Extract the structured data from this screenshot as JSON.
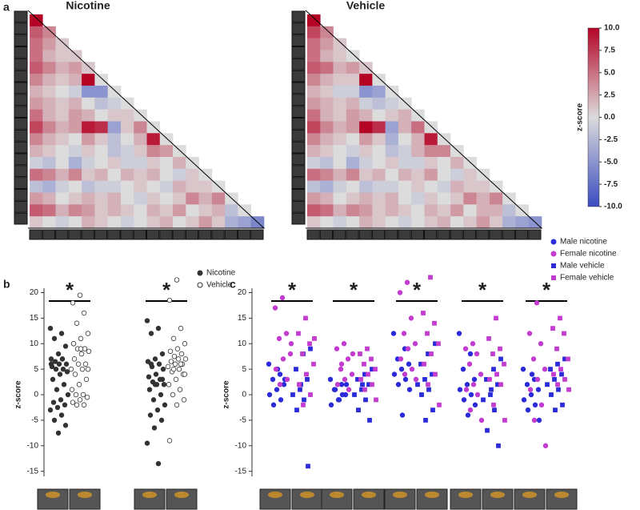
{
  "chart_data": [
    {
      "type": "heatmap",
      "panel": "a",
      "matrices": [
        {
          "title": "Nicotine",
          "values": [
            [
              10
            ],
            [
              6,
              4
            ],
            [
              5,
              3,
              1
            ],
            [
              5,
              2,
              1,
              1
            ],
            [
              6,
              4,
              2,
              3,
              1
            ],
            [
              4,
              2,
              1,
              2,
              10,
              0
            ],
            [
              2,
              1,
              0,
              -1,
              -5,
              -5,
              0
            ],
            [
              3,
              2,
              1,
              2,
              0,
              -2,
              -1,
              0
            ],
            [
              5,
              2,
              1,
              3,
              2,
              0,
              1,
              1,
              0
            ],
            [
              7,
              4,
              2,
              3,
              9,
              8,
              -4,
              1,
              4,
              0
            ],
            [
              4,
              2,
              1,
              0,
              3,
              1,
              -2,
              0,
              2,
              9,
              0
            ],
            [
              2,
              1,
              0,
              -1,
              1,
              0,
              -2,
              -1,
              1,
              4,
              3,
              0
            ],
            [
              -1,
              -2,
              0,
              -3,
              -1,
              0,
              1,
              -1,
              -1,
              1,
              0,
              2,
              0
            ],
            [
              5,
              4,
              2,
              4,
              1,
              2,
              0,
              2,
              1,
              2,
              0,
              -1,
              1,
              0
            ],
            [
              -2,
              -3,
              -1,
              0,
              -2,
              -1,
              -1,
              0,
              1,
              0,
              -1,
              2,
              1,
              1,
              0
            ],
            [
              3,
              2,
              0,
              1,
              2,
              1,
              2,
              0,
              -1,
              1,
              0,
              1,
              4,
              2,
              4,
              0
            ],
            [
              6,
              5,
              2,
              4,
              3,
              1,
              2,
              1,
              0,
              2,
              1,
              3,
              0,
              1,
              2,
              -2,
              0
            ],
            [
              1,
              0,
              -1,
              0,
              2,
              1,
              0,
              -1,
              0,
              1,
              2,
              0,
              1,
              3,
              1,
              -3,
              -4,
              -6
            ]
          ]
        },
        {
          "title": "Vehicle",
          "values": [
            [
              10
            ],
            [
              7,
              4
            ],
            [
              5,
              3,
              1
            ],
            [
              5,
              2,
              1,
              0
            ],
            [
              6,
              5,
              2,
              3,
              1
            ],
            [
              4,
              2,
              1,
              1,
              10,
              0
            ],
            [
              2,
              1,
              -1,
              -1,
              -5,
              -4,
              0
            ],
            [
              3,
              2,
              1,
              2,
              -1,
              -2,
              -1,
              0
            ],
            [
              5,
              2,
              1,
              3,
              2,
              0,
              1,
              2,
              0
            ],
            [
              7,
              4,
              2,
              3,
              10,
              8,
              -4,
              2,
              5,
              0
            ],
            [
              4,
              2,
              1,
              0,
              3,
              1,
              -3,
              0,
              2,
              9,
              0
            ],
            [
              2,
              1,
              0,
              -1,
              1,
              0,
              -2,
              -1,
              2,
              4,
              4,
              0
            ],
            [
              -1,
              -2,
              0,
              -3,
              -1,
              0,
              1,
              -1,
              -1,
              1,
              0,
              2,
              0
            ],
            [
              5,
              4,
              2,
              4,
              1,
              2,
              0,
              2,
              1,
              3,
              0,
              -1,
              1,
              0
            ],
            [
              -2,
              -3,
              -1,
              0,
              -2,
              -1,
              -1,
              0,
              1,
              0,
              -1,
              2,
              1,
              1,
              0
            ],
            [
              3,
              2,
              0,
              1,
              2,
              1,
              2,
              0,
              -1,
              1,
              0,
              1,
              4,
              2,
              4,
              0
            ],
            [
              6,
              5,
              2,
              4,
              3,
              1,
              2,
              1,
              0,
              2,
              1,
              3,
              0,
              2,
              2,
              -2,
              0
            ],
            [
              1,
              0,
              -1,
              0,
              2,
              1,
              0,
              -1,
              0,
              1,
              2,
              0,
              1,
              3,
              1,
              -3,
              -4,
              -5
            ]
          ]
        }
      ],
      "colorbar": {
        "label": "z-score",
        "lim": [
          -10,
          10
        ],
        "colors": [
          "#3a4cc0",
          "#dcdcdc",
          "#b40426"
        ],
        "ticks": [
          {
            "value": 10,
            "label": "10.0"
          },
          7.5,
          {
            "value": 5,
            "label": "5.0"
          },
          2.5,
          {
            "value": 0,
            "label": "0.0"
          },
          -2.5,
          {
            "value": -5,
            "label": "-5.0"
          },
          -7.5,
          {
            "value": -10,
            "label": "-10.0"
          }
        ]
      }
    },
    {
      "type": "strip",
      "panel": "b",
      "ylabel": "z-score",
      "ylim": [
        -16,
        24
      ],
      "yticks": [
        -15,
        -10,
        -5,
        0,
        5,
        10,
        15,
        20
      ],
      "annotations": [
        "*",
        "*"
      ],
      "series": [
        {
          "name": "Nicotine",
          "color": "#333333",
          "marker": "circle",
          "filled": true,
          "values": [
            [
              13,
              12,
              11,
              9.5,
              8,
              7,
              7,
              6.5,
              6,
              6,
              5.5,
              5,
              5,
              4.5,
              4,
              3,
              2,
              1,
              0,
              -1,
              -1.5,
              -2,
              -2.5,
              -3,
              -4,
              -5,
              -6,
              -7.5,
              6,
              7
            ],
            [
              14.5,
              13,
              12,
              8,
              7,
              6.5,
              6,
              5.5,
              5,
              4,
              3.5,
              3,
              2.5,
              2,
              2,
              1,
              0,
              -1,
              -2,
              -3,
              -4,
              -5,
              -6.5,
              -9.5,
              -13.5,
              6,
              3,
              2
            ]
          ]
        },
        {
          "name": "Vehicle",
          "color": "#333333",
          "marker": "circle",
          "filled": false,
          "values": [
            [
              19.5,
              18,
              16,
              14,
              12,
              11,
              10,
              9,
              9,
              8.5,
              8,
              7,
              6,
              6,
              5,
              5,
              4,
              3,
              2,
              1,
              0,
              0,
              -0.5,
              -1,
              -1.5,
              -2,
              -2,
              5,
              9,
              10
            ],
            [
              22.5,
              18.5,
              13,
              11,
              10,
              9,
              8.5,
              8,
              7.5,
              7,
              7,
              6.5,
              6,
              6,
              5.5,
              5,
              4.5,
              4,
              3,
              2,
              1,
              0,
              -1,
              -2,
              -9,
              6,
              5,
              4
            ]
          ]
        }
      ]
    },
    {
      "type": "strip",
      "panel": "c",
      "ylabel": "z-score",
      "ylim": [
        -16,
        24
      ],
      "yticks": [
        -15,
        -10,
        -5,
        0,
        5,
        10,
        15,
        20
      ],
      "annotations": [
        "*",
        "*",
        "*",
        "*",
        "*"
      ],
      "series": [
        {
          "name": "Male nicotine",
          "color": "#2b2bd9",
          "marker": "circle",
          "filled": true,
          "values": [
            [
              6,
              4,
              3,
              2,
              1,
              0,
              -1,
              -2,
              3,
              5
            ],
            [
              3,
              2,
              1,
              0,
              -1,
              -2,
              0,
              1,
              2,
              -1
            ],
            [
              12,
              9,
              7,
              6,
              5,
              4,
              3,
              2,
              1,
              -4
            ],
            [
              12,
              8,
              5,
              3,
              2,
              1,
              0,
              -1,
              -2,
              -4
            ],
            [
              5,
              3,
              2,
              1,
              0,
              -1,
              -2,
              -3,
              -5,
              4
            ]
          ]
        },
        {
          "name": "Female nicotine",
          "color": "#c23ccf",
          "marker": "circle",
          "filled": true,
          "values": [
            [
              19,
              17,
              12,
              11,
              8,
              7,
              5,
              3,
              2,
              10
            ],
            [
              10,
              9,
              7,
              5,
              4,
              3,
              2,
              1,
              6,
              8
            ],
            [
              22,
              20,
              15,
              12,
              10,
              9,
              7,
              5,
              4,
              3
            ],
            [
              10,
              9,
              8,
              6,
              4,
              2,
              1,
              0,
              -3,
              -5
            ],
            [
              18,
              12,
              10,
              7,
              5,
              3,
              1,
              -2,
              -5,
              -10
            ]
          ]
        },
        {
          "name": "Male vehicle",
          "color": "#2b2bd9",
          "marker": "square",
          "filled": true,
          "values": [
            [
              9,
              8,
              5,
              3,
              1,
              0,
              -1,
              -3,
              -14,
              2
            ],
            [
              5,
              4,
              3,
              2,
              1,
              0,
              -1,
              -3,
              -5,
              2
            ],
            [
              10,
              8,
              6,
              4,
              3,
              2,
              1,
              0,
              -3,
              -5
            ],
            [
              7,
              5,
              3,
              2,
              0,
              -1,
              -3,
              -7,
              -10,
              1
            ],
            [
              7,
              6,
              5,
              4,
              3,
              2,
              1,
              0,
              -2,
              -3
            ]
          ]
        },
        {
          "name": "Female vehicle",
          "color": "#c23ccf",
          "marker": "square",
          "filled": true,
          "values": [
            [
              15,
              12,
              10,
              8,
              6,
              4,
              2,
              0,
              -2,
              11
            ],
            [
              9,
              8,
              7,
              6,
              5,
              4,
              3,
              2,
              1,
              -1
            ],
            [
              23,
              16,
              14,
              12,
              10,
              8,
              6,
              4,
              2,
              -2
            ],
            [
              15,
              11,
              9,
              8,
              6,
              4,
              3,
              2,
              -2,
              -5
            ],
            [
              15,
              13,
              12,
              9,
              7,
              5,
              4,
              3,
              2,
              1
            ]
          ]
        }
      ]
    }
  ]
}
